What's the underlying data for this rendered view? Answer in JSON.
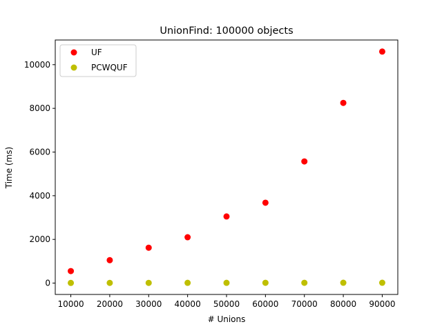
{
  "chart_data": {
    "type": "scatter",
    "title": "UnionFind: 100000 objects",
    "xlabel": "# Unions",
    "ylabel": "Time (ms)",
    "xlim": [
      6000,
      94000
    ],
    "ylim": [
      -520,
      11130
    ],
    "xticks": [
      10000,
      20000,
      30000,
      40000,
      50000,
      60000,
      70000,
      80000,
      90000
    ],
    "yticks": [
      0,
      2000,
      4000,
      6000,
      8000,
      10000
    ],
    "grid": false,
    "legend_position": "upper-left",
    "series": [
      {
        "name": "UF",
        "color": "#ff0000",
        "x": [
          10000,
          20000,
          30000,
          40000,
          50000,
          60000,
          70000,
          80000,
          90000
        ],
        "y": [
          550,
          1050,
          1620,
          2100,
          3050,
          3680,
          5570,
          8250,
          10600
        ]
      },
      {
        "name": "PCWQUF",
        "color": "#bfbf00",
        "x": [
          10000,
          20000,
          30000,
          40000,
          50000,
          60000,
          70000,
          80000,
          90000
        ],
        "y": [
          8,
          9,
          10,
          11,
          12,
          13,
          14,
          15,
          16
        ]
      }
    ]
  }
}
